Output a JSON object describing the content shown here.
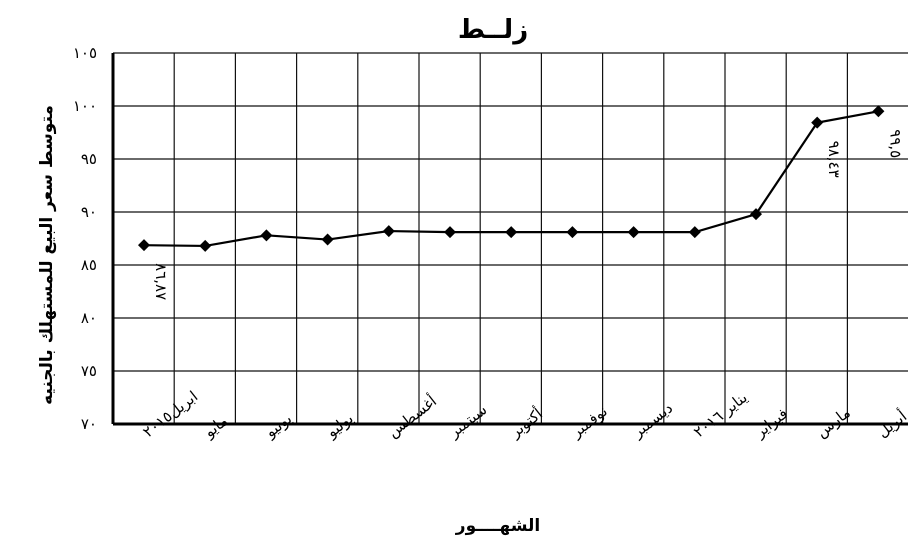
{
  "chart_data": {
    "type": "line",
    "title": "زلــط",
    "xlabel": "الشهــــور",
    "ylabel": "متوسط سعر البيع للمستهلك بالجنيه",
    "categories": [
      "ابريل٢٠١٥",
      "مايو",
      "يونيو",
      "يوليو",
      "أغسطس",
      "سبتمبر",
      "أكتوبر",
      "نوفمبر",
      "ديسمبر",
      "يناير ٢٠١٦",
      "فبراير",
      "مارس",
      "أبريل"
    ],
    "values": [
      86.87,
      86.8,
      87.8,
      87.4,
      88.2,
      88.1,
      88.1,
      88.1,
      88.1,
      88.1,
      89.8,
      98.43,
      99.5
    ],
    "yticks": [
      "٧٠",
      "٧٥",
      "٨٠",
      "٨٥",
      "٩٠",
      "٩٥",
      "١٠٠",
      "١٠٥"
    ],
    "ylim": [
      70,
      105
    ],
    "grid": true,
    "data_labels": [
      {
        "index": 0,
        "text": "٨٦,٨٧"
      },
      {
        "index": 11,
        "text": "٩٨,٤٣"
      },
      {
        "index": 12,
        "text": "٩٩,٥"
      }
    ],
    "color": "#000000"
  }
}
